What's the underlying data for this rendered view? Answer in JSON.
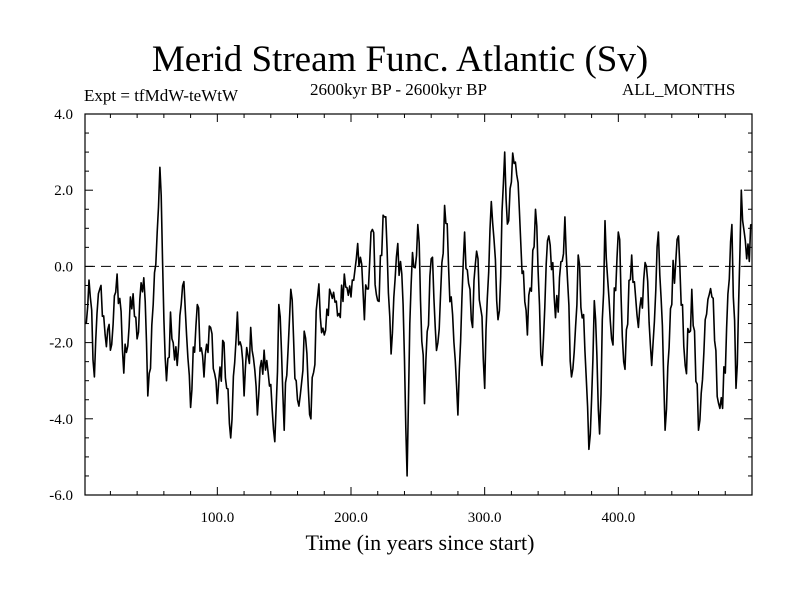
{
  "chart_data": {
    "type": "line",
    "title": "Merid Stream Func. Atlantic (Sv)",
    "subtitle_left": "Expt = tfMdW-teWtW",
    "subtitle_center": "2600kyr BP - 2600kyr BP",
    "subtitle_right": "ALL_MONTHS",
    "xlabel": "Time (in years since start)",
    "ylabel": "",
    "xlim": [
      1,
      500
    ],
    "ylim": [
      -6.0,
      4.0
    ],
    "xticks": [
      100,
      200,
      300,
      400
    ],
    "xtick_labels": [
      "100.0",
      "200.0",
      "300.0",
      "400.0"
    ],
    "yticks": [
      -6,
      -4,
      -2,
      0,
      2,
      4
    ],
    "ytick_labels": [
      "-6.0",
      "-4.0",
      "-2.0",
      "0.0",
      "2.0",
      "4.0"
    ],
    "reference_line": {
      "y": 0.0,
      "style": "dashed"
    },
    "series": [
      {
        "name": "Merid Stream Func. Atlantic",
        "anchors": [
          [
            1,
            -1.5
          ],
          [
            5,
            -0.8
          ],
          [
            8,
            -2.9
          ],
          [
            12,
            -0.6
          ],
          [
            15,
            -1.3
          ],
          [
            20,
            -2.2
          ],
          [
            25,
            -0.2
          ],
          [
            30,
            -2.8
          ],
          [
            35,
            -0.8
          ],
          [
            40,
            -1.9
          ],
          [
            45,
            -0.3
          ],
          [
            48,
            -3.4
          ],
          [
            52,
            -1.0
          ],
          [
            55,
            0.9
          ],
          [
            57,
            2.6
          ],
          [
            59,
            0.2
          ],
          [
            62,
            -3.0
          ],
          [
            65,
            -1.2
          ],
          [
            70,
            -2.6
          ],
          [
            75,
            -0.4
          ],
          [
            80,
            -3.7
          ],
          [
            85,
            -1.0
          ],
          [
            90,
            -2.9
          ],
          [
            95,
            -1.6
          ],
          [
            100,
            -3.6
          ],
          [
            105,
            -2.0
          ],
          [
            110,
            -4.5
          ],
          [
            115,
            -1.2
          ],
          [
            120,
            -3.4
          ],
          [
            125,
            -1.6
          ],
          [
            130,
            -3.9
          ],
          [
            135,
            -2.2
          ],
          [
            140,
            -3.1
          ],
          [
            143,
            -4.6
          ],
          [
            146,
            -1.0
          ],
          [
            150,
            -4.3
          ],
          [
            155,
            -0.6
          ],
          [
            160,
            -3.5
          ],
          [
            165,
            -1.7
          ],
          [
            170,
            -4.0
          ],
          [
            175,
            -0.8
          ],
          [
            180,
            -1.8
          ],
          [
            185,
            -0.7
          ],
          [
            190,
            -1.3
          ],
          [
            195,
            -0.2
          ],
          [
            200,
            -0.8
          ],
          [
            205,
            0.6
          ],
          [
            210,
            -1.4
          ],
          [
            215,
            0.9
          ],
          [
            220,
            -0.9
          ],
          [
            225,
            1.3
          ],
          [
            230,
            -2.3
          ],
          [
            235,
            0.6
          ],
          [
            239,
            -1.0
          ],
          [
            242,
            -5.5
          ],
          [
            245,
            -0.5
          ],
          [
            250,
            1.1
          ],
          [
            255,
            -3.6
          ],
          [
            260,
            0.2
          ],
          [
            265,
            -2.0
          ],
          [
            270,
            1.6
          ],
          [
            275,
            -0.8
          ],
          [
            280,
            -3.9
          ],
          [
            285,
            0.9
          ],
          [
            290,
            -1.4
          ],
          [
            295,
            0.2
          ],
          [
            300,
            -3.2
          ],
          [
            305,
            1.7
          ],
          [
            310,
            -1.4
          ],
          [
            315,
            3.0
          ],
          [
            318,
            1.2
          ],
          [
            322,
            2.7
          ],
          [
            327,
            0.6
          ],
          [
            332,
            -1.8
          ],
          [
            338,
            1.5
          ],
          [
            343,
            -2.6
          ],
          [
            348,
            0.8
          ],
          [
            355,
            -1.2
          ],
          [
            360,
            1.3
          ],
          [
            365,
            -2.9
          ],
          [
            370,
            0.3
          ],
          [
            375,
            -2.2
          ],
          [
            378,
            -4.8
          ],
          [
            382,
            -0.9
          ],
          [
            386,
            -4.4
          ],
          [
            390,
            1.2
          ],
          [
            395,
            -1.9
          ],
          [
            400,
            0.9
          ],
          [
            405,
            -2.7
          ],
          [
            410,
            0.3
          ],
          [
            415,
            -1.6
          ],
          [
            420,
            0.1
          ],
          [
            425,
            -2.6
          ],
          [
            430,
            0.9
          ],
          [
            435,
            -4.3
          ],
          [
            440,
            -1.0
          ],
          [
            445,
            0.8
          ],
          [
            450,
            -2.6
          ],
          [
            455,
            -0.6
          ],
          [
            460,
            -4.3
          ],
          [
            465,
            -1.4
          ],
          [
            470,
            -0.8
          ],
          [
            475,
            -3.6
          ],
          [
            480,
            -2.8
          ],
          [
            485,
            1.1
          ],
          [
            488,
            -3.2
          ],
          [
            492,
            2.0
          ],
          [
            496,
            0.2
          ],
          [
            500,
            1.1
          ]
        ],
        "noise_amplitude": 0.9,
        "color": "#000000"
      }
    ]
  }
}
